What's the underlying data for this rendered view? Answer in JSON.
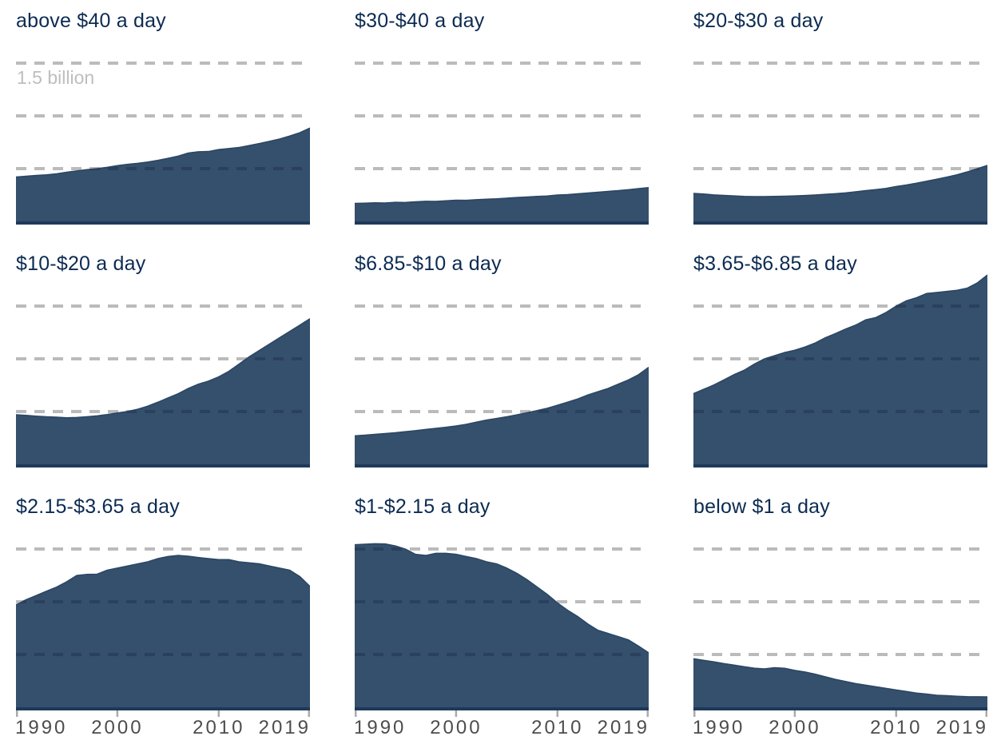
{
  "chart_data": {
    "type": "area",
    "title": "",
    "unit": "people (billions)",
    "years": [
      1990,
      1991,
      1992,
      1993,
      1994,
      1995,
      1996,
      1997,
      1998,
      1999,
      2000,
      2001,
      2002,
      2003,
      2004,
      2005,
      2006,
      2007,
      2008,
      2009,
      2010,
      2011,
      2012,
      2013,
      2014,
      2015,
      2016,
      2017,
      2018,
      2019
    ],
    "x_axis": {
      "start_year": 1990,
      "end_year": 2019,
      "tick_labels": [
        "1990",
        "2000",
        "2010",
        "2019"
      ]
    },
    "y_axis": {
      "annotation": "1.5 billion",
      "gridline_values_billions": [
        1.5,
        1.0,
        0.5
      ],
      "ymin": 0,
      "ymax_billions": 1.848,
      "grid_style": "dashed"
    },
    "legend_position": "none",
    "panels": [
      {
        "label": "above $40 a day",
        "values_billions": [
          0.42,
          0.428,
          0.435,
          0.441,
          0.45,
          0.465,
          0.478,
          0.49,
          0.5,
          0.512,
          0.528,
          0.54,
          0.55,
          0.562,
          0.578,
          0.597,
          0.618,
          0.648,
          0.66,
          0.662,
          0.68,
          0.69,
          0.7,
          0.718,
          0.738,
          0.758,
          0.78,
          0.808,
          0.84,
          0.885
        ]
      },
      {
        "label": "$30-$40 a day",
        "values_billions": [
          0.17,
          0.172,
          0.176,
          0.174,
          0.18,
          0.179,
          0.185,
          0.19,
          0.189,
          0.195,
          0.2,
          0.199,
          0.205,
          0.21,
          0.214,
          0.22,
          0.226,
          0.23,
          0.236,
          0.24,
          0.25,
          0.254,
          0.261,
          0.269,
          0.276,
          0.284,
          0.291,
          0.3,
          0.31,
          0.32
        ]
      },
      {
        "label": "$20-$30 a day",
        "values_billions": [
          0.265,
          0.259,
          0.251,
          0.246,
          0.241,
          0.236,
          0.235,
          0.234,
          0.236,
          0.239,
          0.241,
          0.245,
          0.25,
          0.256,
          0.262,
          0.27,
          0.28,
          0.291,
          0.301,
          0.312,
          0.33,
          0.345,
          0.361,
          0.38,
          0.399,
          0.419,
          0.441,
          0.468,
          0.499,
          0.53
        ]
      },
      {
        "label": "$10-$20 a day",
        "values_billions": [
          0.47,
          0.464,
          0.456,
          0.45,
          0.446,
          0.441,
          0.444,
          0.451,
          0.459,
          0.471,
          0.486,
          0.501,
          0.521,
          0.551,
          0.589,
          0.629,
          0.669,
          0.719,
          0.759,
          0.789,
          0.829,
          0.881,
          0.949,
          1.019,
          1.079,
          1.139,
          1.199,
          1.259,
          1.319,
          1.38
        ]
      },
      {
        "label": "$6.85-$10 a day",
        "values_billions": [
          0.27,
          0.276,
          0.284,
          0.291,
          0.299,
          0.309,
          0.319,
          0.33,
          0.34,
          0.351,
          0.364,
          0.379,
          0.399,
          0.419,
          0.434,
          0.45,
          0.469,
          0.489,
          0.509,
          0.531,
          0.559,
          0.589,
          0.619,
          0.657,
          0.689,
          0.719,
          0.759,
          0.799,
          0.849,
          0.92
        ]
      },
      {
        "label": "$3.65-$6.85 a day",
        "values_billions": [
          0.67,
          0.71,
          0.751,
          0.799,
          0.849,
          0.891,
          0.949,
          0.999,
          1.029,
          1.059,
          1.081,
          1.111,
          1.149,
          1.199,
          1.239,
          1.281,
          1.319,
          1.369,
          1.391,
          1.439,
          1.499,
          1.549,
          1.579,
          1.619,
          1.629,
          1.639,
          1.649,
          1.669,
          1.719,
          1.795
        ]
      },
      {
        "label": "$2.15-$3.65 a day",
        "values_billions": [
          0.97,
          1.019,
          1.059,
          1.099,
          1.139,
          1.189,
          1.249,
          1.259,
          1.261,
          1.299,
          1.319,
          1.339,
          1.359,
          1.379,
          1.409,
          1.429,
          1.439,
          1.431,
          1.419,
          1.409,
          1.399,
          1.399,
          1.379,
          1.369,
          1.359,
          1.339,
          1.319,
          1.299,
          1.239,
          1.145
        ]
      },
      {
        "label": "$1-$2.15 a day",
        "values_billions": [
          1.54,
          1.545,
          1.55,
          1.548,
          1.529,
          1.499,
          1.449,
          1.439,
          1.459,
          1.459,
          1.449,
          1.429,
          1.409,
          1.379,
          1.359,
          1.319,
          1.269,
          1.209,
          1.139,
          1.069,
          0.989,
          0.919,
          0.859,
          0.789,
          0.729,
          0.699,
          0.669,
          0.639,
          0.579,
          0.515
        ]
      },
      {
        "label": "below $1 a day",
        "values_billions": [
          0.46,
          0.445,
          0.43,
          0.414,
          0.399,
          0.384,
          0.37,
          0.364,
          0.374,
          0.369,
          0.349,
          0.334,
          0.314,
          0.289,
          0.264,
          0.244,
          0.224,
          0.209,
          0.194,
          0.179,
          0.164,
          0.149,
          0.134,
          0.124,
          0.114,
          0.109,
          0.104,
          0.1,
          0.099,
          0.098
        ]
      }
    ],
    "colors": {
      "area_fill": "#35506C",
      "area_edge": "#2B4765",
      "gridline": "#BBBBBB",
      "gridline_over_area": "#2A405C",
      "baseline": "#1E3A5B",
      "title_text": "#0C2B52",
      "axis_label_text": "#4D4D4D",
      "annotation_text": "#BEBEBE",
      "tick_mark": "#ABABAB"
    }
  }
}
